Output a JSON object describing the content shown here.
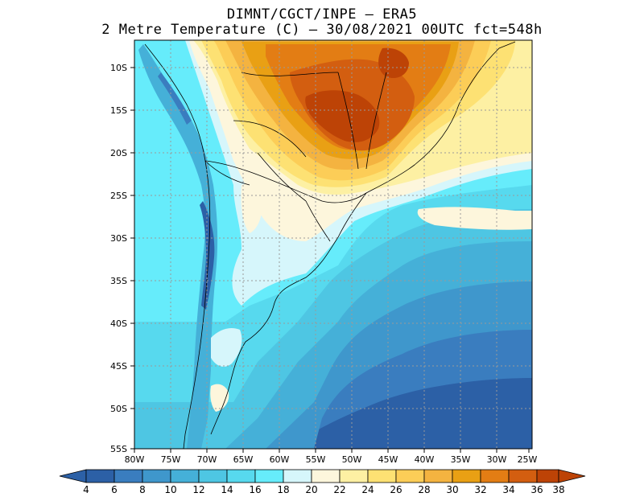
{
  "title": {
    "line1": "DIMNT/CGCT/INPE –  ERA5",
    "line2": "2 Metre Temperature (C) –  30/08/2021 00UTC fct=548h"
  },
  "map": {
    "region": "South America",
    "lat_labels": [
      "10S",
      "15S",
      "20S",
      "25S",
      "30S",
      "35S",
      "40S",
      "45S",
      "50S",
      "55S"
    ],
    "lon_labels": [
      "80W",
      "75W",
      "70W",
      "65W",
      "60W",
      "55W",
      "50W",
      "45W",
      "40W",
      "35W",
      "30W",
      "25W"
    ],
    "gridlines": "dotted"
  },
  "colorbar": {
    "labels": [
      "4",
      "6",
      "8",
      "10",
      "12",
      "14",
      "16",
      "18",
      "20",
      "22",
      "24",
      "26",
      "28",
      "30",
      "32",
      "34",
      "36",
      "38"
    ],
    "colors": [
      "#2c60a6",
      "#3a7dbf",
      "#3f97cc",
      "#45b0d8",
      "#4ec6e3",
      "#57d9ee",
      "#66ecfb",
      "#d6f6fb",
      "#fdf6dc",
      "#fdf0a3",
      "#fde173",
      "#fccd57",
      "#f4b340",
      "#e9a014",
      "#e37d14",
      "#d35e10",
      "#bd4306"
    ],
    "extend": "both"
  }
}
